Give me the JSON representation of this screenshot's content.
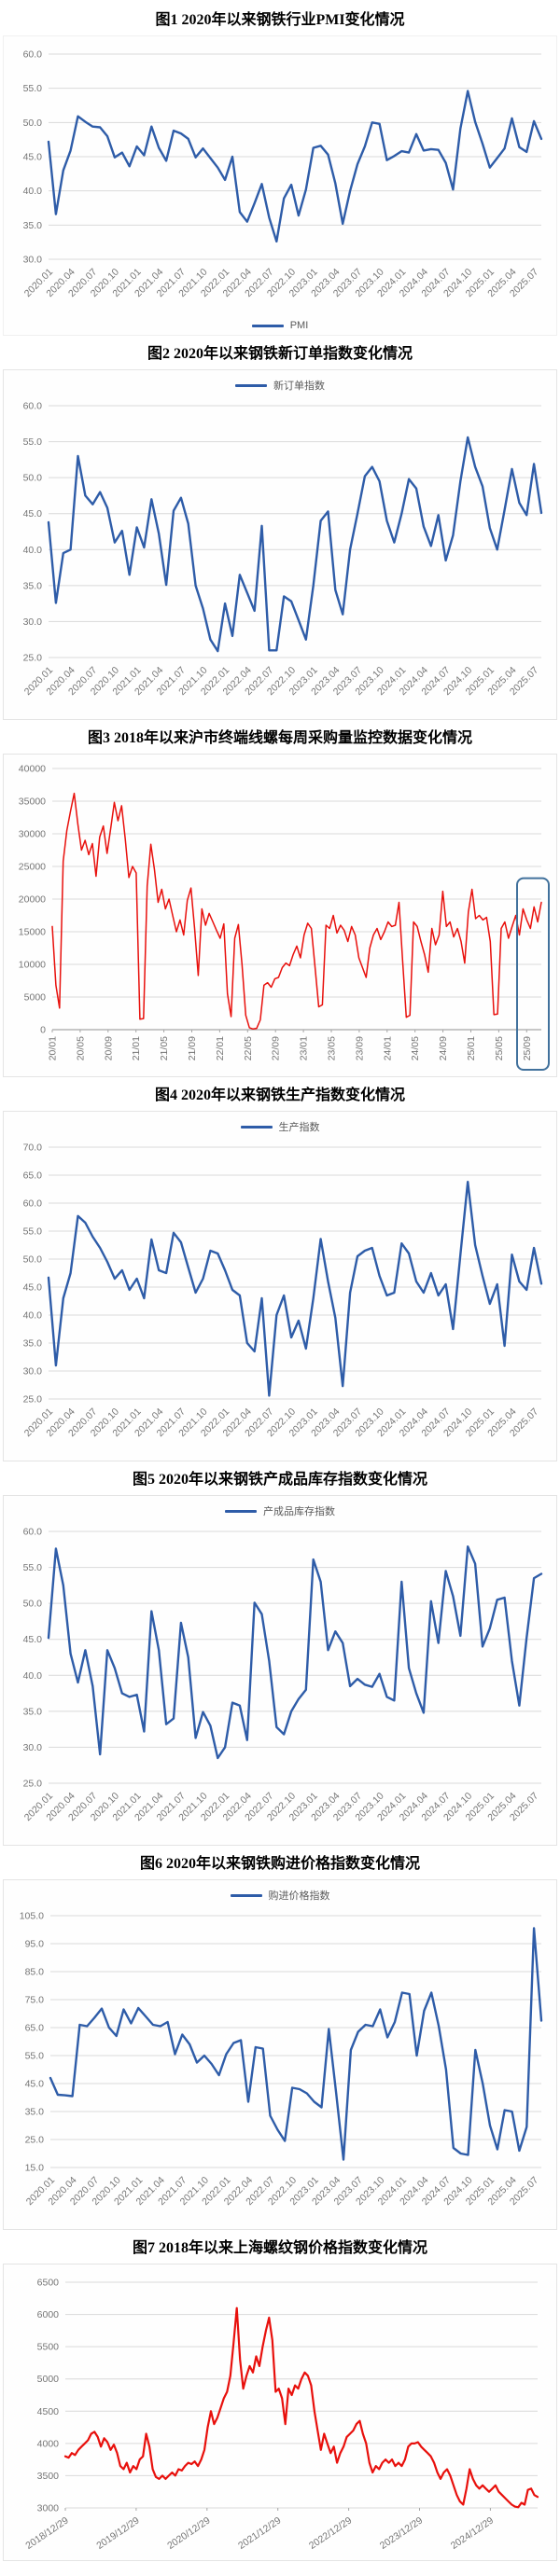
{
  "colors": {
    "line_blue": "#2e5ca8",
    "line_red": "#e8100c",
    "grid": "#d9d9d9",
    "axis": "#a6a6a6",
    "tick_text": "#757575",
    "legend_text": "#595959",
    "highlight_box": "#41719c",
    "chart_border": "#e4e4e4",
    "title_text": "#000000"
  },
  "chart_data": [
    {
      "id": "steel-pmi",
      "type": "line",
      "title": "图1 2020年以来钢铁行业PMI变化情况",
      "legend": "PMI",
      "legend_position": "bottom",
      "color": "#2e5ca8",
      "ylim": [
        30,
        60
      ],
      "y_step": 5,
      "y_decimals": 1,
      "grid": true,
      "x_label_step": 3,
      "x_labels": [
        "2020.01",
        "2020.04",
        "2020.07",
        "2020.10",
        "2021.01",
        "2021.04",
        "2021.07",
        "2021.10",
        "2022.01",
        "2022.04",
        "2022.07",
        "2022.10",
        "2023.01",
        "2023.04",
        "2023.07",
        "2023.10",
        "2024.01",
        "2024.04",
        "2024.07",
        "2024.10",
        "2025.01",
        "2025.04",
        "2025.07"
      ],
      "values": [
        47.2,
        36.6,
        43.0,
        45.9,
        50.9,
        50.1,
        49.4,
        49.3,
        48.0,
        44.9,
        45.6,
        43.6,
        46.5,
        45.2,
        49.4,
        46.3,
        44.4,
        48.8,
        48.4,
        47.6,
        44.9,
        46.2,
        44.8,
        43.4,
        41.6,
        45.0,
        36.9,
        35.5,
        38.2,
        41.0,
        36.1,
        32.6,
        38.9,
        40.9,
        36.4,
        40.2,
        46.3,
        46.6,
        45.3,
        41.1,
        35.2,
        40.0,
        43.9,
        46.5,
        50.0,
        49.8,
        44.5,
        45.1,
        45.8,
        45.6,
        48.3,
        45.9,
        46.1,
        46.0,
        44.1,
        40.2,
        49.1,
        54.6,
        50.1,
        46.9,
        43.4,
        44.8,
        46.2,
        50.6,
        46.4,
        45.7,
        50.2,
        47.6
      ]
    },
    {
      "id": "steel-new-orders",
      "type": "line",
      "title": "图2 2020年以来钢铁新订单指数变化情况",
      "legend": "新订单指数",
      "legend_position": "top",
      "color": "#2e5ca8",
      "ylim": [
        25,
        60
      ],
      "y_step": 5,
      "y_decimals": 1,
      "grid": true,
      "x_label_step": 3,
      "x_labels": [
        "2020.01",
        "2020.04",
        "2020.07",
        "2020.10",
        "2021.01",
        "2021.04",
        "2021.07",
        "2021.10",
        "2022.01",
        "2022.04",
        "2022.07",
        "2022.10",
        "2023.01",
        "2023.04",
        "2023.07",
        "2023.10",
        "2024.01",
        "2024.04",
        "2024.07",
        "2024.10",
        "2025.01",
        "2025.04",
        "2025.07"
      ],
      "values": [
        43.8,
        32.6,
        39.5,
        40.0,
        53.0,
        47.5,
        46.3,
        48.0,
        45.8,
        41.0,
        42.6,
        36.5,
        43.1,
        40.3,
        47.0,
        42.2,
        35.1,
        45.4,
        47.2,
        43.6,
        35.0,
        31.8,
        27.5,
        25.9,
        32.5,
        28.0,
        36.5,
        34.0,
        31.5,
        43.3,
        26.0,
        26.0,
        33.5,
        32.8,
        30.2,
        27.5,
        35.0,
        44.0,
        45.3,
        34.4,
        31.0,
        40.0,
        45.0,
        50.2,
        51.5,
        49.5,
        44.0,
        41.0,
        45.0,
        49.8,
        48.5,
        43.2,
        40.5,
        44.8,
        38.5,
        42.0,
        49.5,
        55.6,
        51.5,
        48.8,
        43.0,
        40.0,
        45.5,
        51.2,
        46.5,
        44.8,
        51.9,
        45.1
      ]
    },
    {
      "id": "shanghai-weekly-procurement",
      "type": "line",
      "title": "图3 2018年以来沪市终端线螺每周采购量监控数据变化情况",
      "legend": null,
      "color": "#e8100c",
      "ylim": [
        0,
        40000
      ],
      "y_step": 5000,
      "y_decimals": 0,
      "grid": true,
      "x_span": 0.97,
      "x_labels": [
        "20/01",
        "20/05",
        "20/09",
        "21/01",
        "21/05",
        "21/09",
        "22/01",
        "22/05",
        "22/09",
        "23/01",
        "23/05",
        "23/09",
        "24/01",
        "24/05",
        "24/09",
        "25/01",
        "25/05",
        "25/09"
      ],
      "highlight": {
        "y_from_frac": 0.42,
        "note": "recent-weeks-highlight-box"
      },
      "values": [
        15800,
        6800,
        3300,
        25800,
        30500,
        33500,
        36200,
        31500,
        27500,
        29000,
        26800,
        28500,
        23500,
        29500,
        31200,
        27000,
        30800,
        34800,
        32000,
        34300,
        29200,
        23300,
        25000,
        24000,
        1600,
        1700,
        22000,
        28400,
        24500,
        19500,
        21500,
        18500,
        20000,
        17500,
        15000,
        16800,
        14500,
        19800,
        21700,
        15500,
        8300,
        18500,
        16000,
        17800,
        16500,
        15200,
        14000,
        16200,
        5500,
        2000,
        14000,
        16100,
        10000,
        2200,
        300,
        100,
        200,
        1500,
        6800,
        7200,
        6500,
        7800,
        8000,
        9500,
        10200,
        9800,
        11500,
        12800,
        11000,
        14500,
        16300,
        15500,
        9500,
        3500,
        3800,
        16000,
        15500,
        17500,
        14800,
        16000,
        15200,
        13500,
        15800,
        14500,
        11000,
        9500,
        8000,
        12500,
        14500,
        15500,
        13800,
        15000,
        16500,
        15800,
        16000,
        19500,
        10500,
        1900,
        2200,
        16500,
        15800,
        13500,
        11500,
        8800,
        15500,
        13000,
        14500,
        21200,
        15800,
        16500,
        14200,
        15500,
        13500,
        10200,
        18000,
        21500,
        17000,
        17500,
        16800,
        17200,
        13500,
        2300,
        2400,
        15500,
        16500,
        14000,
        15800,
        17500,
        14500,
        18500,
        16800,
        15500,
        18800,
        16500,
        19500
      ]
    },
    {
      "id": "steel-production",
      "type": "line",
      "title": "图4 2020年以来钢铁生产指数变化情况",
      "legend": "生产指数",
      "legend_position": "top",
      "color": "#2e5ca8",
      "ylim": [
        25,
        70
      ],
      "y_step": 5,
      "y_decimals": 1,
      "grid": true,
      "x_label_step": 3,
      "x_labels": [
        "2020.01",
        "2020.04",
        "2020.07",
        "2020.10",
        "2021.01",
        "2021.04",
        "2021.07",
        "2021.10",
        "2022.01",
        "2022.04",
        "2022.07",
        "2022.10",
        "2023.01",
        "2023.04",
        "2023.07",
        "2023.10",
        "2024.01",
        "2024.04",
        "2024.07",
        "2024.10",
        "2025.01",
        "2025.04",
        "2025.07"
      ],
      "values": [
        46.7,
        31.0,
        43.0,
        47.5,
        57.7,
        56.5,
        54.0,
        52.0,
        49.5,
        46.5,
        48.0,
        44.5,
        46.5,
        43.0,
        53.5,
        48.0,
        47.5,
        54.7,
        53.0,
        48.5,
        44.0,
        46.5,
        51.5,
        51.0,
        48.0,
        44.5,
        43.5,
        35.0,
        33.5,
        43.0,
        25.6,
        40.0,
        43.5,
        36.0,
        39.0,
        34.0,
        43.0,
        53.6,
        46.0,
        39.5,
        27.3,
        44.0,
        50.5,
        51.5,
        52.0,
        47.0,
        43.5,
        44.0,
        52.8,
        51.0,
        46.0,
        44.0,
        47.5,
        43.5,
        45.5,
        37.5,
        50.8,
        63.8,
        52.5,
        47.0,
        42.0,
        45.5,
        34.5,
        50.8,
        46.0,
        44.5,
        52.0,
        45.6
      ]
    },
    {
      "id": "steel-finished-inventory",
      "type": "line",
      "title": "图5 2020年以来钢铁产成品库存指数变化情况",
      "legend": "产成品库存指数",
      "legend_position": "top",
      "color": "#2e5ca8",
      "ylim": [
        25,
        60
      ],
      "y_step": 5,
      "y_decimals": 1,
      "grid": true,
      "x_label_step": 3,
      "x_labels": [
        "2020.01",
        "2020.04",
        "2020.07",
        "2020.10",
        "2021.01",
        "2021.04",
        "2021.07",
        "2021.10",
        "2022.01",
        "2022.04",
        "2022.07",
        "2022.10",
        "2023.01",
        "2023.04",
        "2023.07",
        "2023.10",
        "2024.01",
        "2024.04",
        "2024.07",
        "2024.10",
        "2025.01",
        "2025.04",
        "2025.07"
      ],
      "values": [
        45.2,
        57.6,
        52.5,
        43.0,
        39.0,
        43.5,
        38.5,
        29.0,
        43.5,
        41.0,
        37.5,
        37.0,
        37.3,
        32.2,
        48.9,
        43.5,
        33.2,
        34.0,
        47.3,
        42.5,
        31.3,
        34.9,
        33.0,
        28.5,
        30.0,
        36.2,
        35.8,
        31.0,
        50.1,
        48.5,
        42.0,
        32.8,
        31.8,
        35.0,
        36.7,
        38.0,
        56.1,
        53.0,
        43.5,
        46.1,
        44.5,
        38.5,
        39.5,
        38.7,
        38.4,
        40.2,
        37.0,
        36.5,
        53.0,
        41.0,
        37.5,
        34.8,
        50.3,
        44.5,
        54.5,
        51.0,
        45.5,
        57.9,
        55.5,
        44.0,
        46.5,
        50.5,
        50.8,
        42.0,
        35.8,
        45.2,
        53.5,
        54.1
      ]
    },
    {
      "id": "steel-purchase-price",
      "type": "line",
      "title": "图6 2020年以来钢铁购进价格指数变化情况",
      "legend": "购进价格指数",
      "legend_position": "top",
      "color": "#2e5ca8",
      "ylim": [
        15,
        105
      ],
      "y_step": 10,
      "y_decimals": 1,
      "grid": true,
      "x_label_step": 3,
      "x_labels": [
        "2020.01",
        "2020.04",
        "2020.07",
        "2020.10",
        "2021.01",
        "2021.04",
        "2021.07",
        "2021.10",
        "2022.01",
        "2022.04",
        "2022.07",
        "2022.10",
        "2023.01",
        "2023.04",
        "2023.07",
        "2023.10",
        "2024.01",
        "2024.04",
        "2024.07",
        "2024.10",
        "2025.01",
        "2025.04",
        "2025.07"
      ],
      "values": [
        47.0,
        41.0,
        40.8,
        40.5,
        66.0,
        65.5,
        68.5,
        71.8,
        65.0,
        62.0,
        71.5,
        66.5,
        72.0,
        69.0,
        66.0,
        65.5,
        67.0,
        55.5,
        62.5,
        59.0,
        52.5,
        55.0,
        52.0,
        48.0,
        55.5,
        59.5,
        60.5,
        38.5,
        58.0,
        57.5,
        33.5,
        28.5,
        24.5,
        43.5,
        43.0,
        41.5,
        38.5,
        36.5,
        64.5,
        41.5,
        17.8,
        57.0,
        63.5,
        66.0,
        65.5,
        71.5,
        61.5,
        67.0,
        77.5,
        77.0,
        55.0,
        71.0,
        77.5,
        65.5,
        50.0,
        22.0,
        20.0,
        19.5,
        57.0,
        45.0,
        30.0,
        21.5,
        35.5,
        35.0,
        21.0,
        29.5,
        100.5,
        67.5
      ]
    },
    {
      "id": "shanghai-rebar-price",
      "type": "line",
      "title": "图7 2018年以来上海螺纹钢价格指数变化情况",
      "legend": null,
      "color": "#e8100c",
      "ylim": [
        3000,
        6500
      ],
      "y_step": 500,
      "y_decimals": 0,
      "grid": true,
      "x_span": 0.9,
      "x_labels": [
        "2018/12/29",
        "2019/12/29",
        "2020/12/29",
        "2021/12/29",
        "2022/12/29",
        "2023/12/29",
        "2024/12/29"
      ],
      "values": [
        3800,
        3780,
        3850,
        3820,
        3900,
        3950,
        4000,
        4050,
        4150,
        4180,
        4100,
        3950,
        4080,
        4020,
        3900,
        3980,
        3850,
        3650,
        3600,
        3700,
        3550,
        3650,
        3600,
        3750,
        3800,
        4150,
        3950,
        3600,
        3480,
        3450,
        3500,
        3450,
        3500,
        3550,
        3500,
        3600,
        3580,
        3650,
        3700,
        3680,
        3720,
        3650,
        3750,
        3900,
        4250,
        4500,
        4300,
        4400,
        4550,
        4700,
        4800,
        5050,
        5550,
        6100,
        5300,
        4850,
        5050,
        5200,
        5100,
        5350,
        5200,
        5500,
        5750,
        5950,
        5600,
        4800,
        4850,
        4700,
        4300,
        4850,
        4750,
        4900,
        4850,
        5000,
        5100,
        5050,
        4900,
        4500,
        4200,
        3900,
        4150,
        4000,
        3850,
        3950,
        3700,
        3850,
        3950,
        4100,
        4150,
        4200,
        4300,
        4350,
        4150,
        4000,
        3700,
        3550,
        3650,
        3600,
        3700,
        3750,
        3700,
        3750,
        3650,
        3700,
        3650,
        3750,
        3950,
        4000,
        4000,
        4020,
        3950,
        3900,
        3850,
        3800,
        3700,
        3550,
        3450,
        3550,
        3600,
        3500,
        3350,
        3200,
        3100,
        3050,
        3300,
        3600,
        3450,
        3350,
        3300,
        3350,
        3300,
        3250,
        3300,
        3350,
        3250,
        3200,
        3150,
        3100,
        3050,
        3020,
        3010,
        3080,
        3050,
        3280,
        3300,
        3200,
        3170
      ]
    }
  ]
}
